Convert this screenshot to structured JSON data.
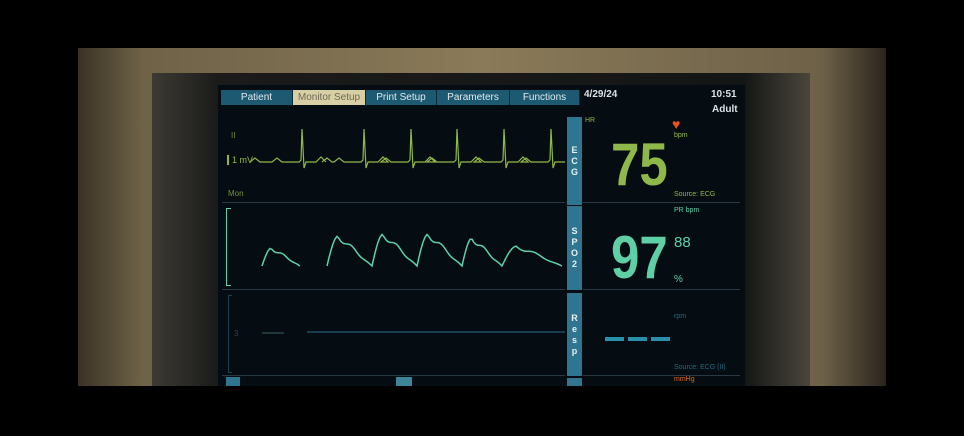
{
  "tabs": [
    "Patient",
    "Monitor Setup",
    "Print Setup",
    "Parameters",
    "Functions"
  ],
  "active_tab": "Monitor Setup",
  "header": {
    "date": "4/29/24",
    "time": "10:51",
    "patient_type": "Adult"
  },
  "ecg": {
    "lead": "II",
    "scale": "1 mV",
    "mode": "Mon",
    "side_label": "E C G",
    "param": "HR",
    "unit": "bpm",
    "value": "75",
    "source": "Source: ECG",
    "color": "#8fb84a",
    "icon": "heart-icon"
  },
  "spo2": {
    "side_label": "S P O 2",
    "pr_label": "PR bpm",
    "value": "97",
    "pr_value": "88",
    "unit": "%",
    "color": "#5fd0a6"
  },
  "resp": {
    "side_label": "R e s p",
    "scale": "3",
    "unit": "rpm",
    "value": "---",
    "source": "Source: ECG (II)",
    "color": "#2a8fa8"
  },
  "nibp": {
    "unit": "mmHg",
    "color": "#e06a20"
  }
}
